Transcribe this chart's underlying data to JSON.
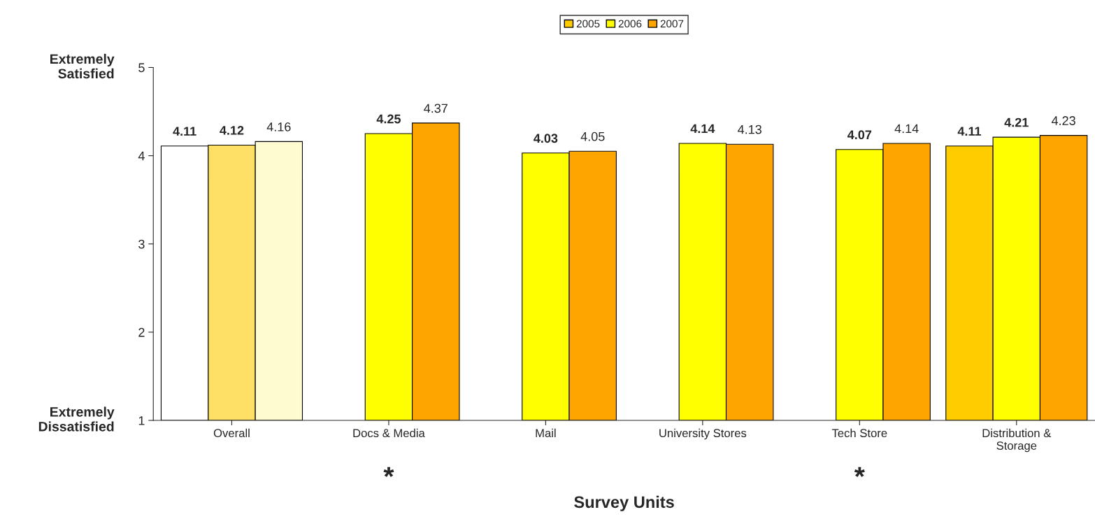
{
  "chart_data": {
    "type": "bar",
    "xlabel": "Survey Units",
    "categories": [
      "Overall",
      "Docs & Media",
      "Mail",
      "University Stores",
      "Tech Store",
      "Distribution &\nStorage"
    ],
    "series": [
      {
        "name": "2005",
        "color": "#ffcc00",
        "colors": [
          "#ffffff",
          null,
          null,
          null,
          null,
          "#ffcc00"
        ],
        "values": [
          4.11,
          null,
          null,
          null,
          null,
          4.11
        ]
      },
      {
        "name": "2006",
        "color": "#ffff00",
        "colors": [
          "#ffe066",
          "#ffff00",
          "#ffff00",
          "#ffff00",
          "#ffff00",
          "#ffff00"
        ],
        "values": [
          4.12,
          4.25,
          4.03,
          4.14,
          4.07,
          4.21
        ]
      },
      {
        "name": "2007",
        "color": "#ffa500",
        "colors": [
          "#fffbd0",
          "#ffa500",
          "#ffa500",
          "#ffa500",
          "#ffa500",
          "#ffa500"
        ],
        "values": [
          4.16,
          4.37,
          4.05,
          4.13,
          4.14,
          4.23
        ]
      }
    ],
    "ylim": [
      1,
      5
    ],
    "yticks": [
      1,
      2,
      3,
      4,
      5
    ],
    "data_labels": true,
    "legend": "top",
    "grid": false,
    "annotations": [
      "Extremely\nSatisfied",
      "Extremely\nDissatisfied",
      "*",
      "*"
    ]
  }
}
